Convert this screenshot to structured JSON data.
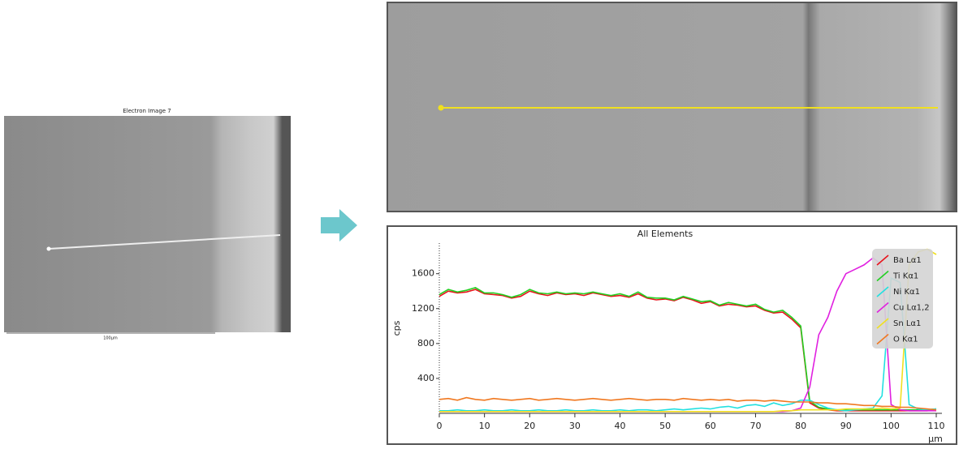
{
  "images": {
    "left_title": "Electron Image 7",
    "scale_bar": "100µm"
  },
  "chart_data": {
    "type": "line",
    "title": "All Elements",
    "y_label": "cps",
    "x_label": "µm",
    "x": [
      0,
      2,
      4,
      6,
      8,
      10,
      12,
      14,
      16,
      18,
      20,
      22,
      24,
      26,
      28,
      30,
      32,
      34,
      36,
      38,
      40,
      42,
      44,
      46,
      48,
      50,
      52,
      54,
      56,
      58,
      60,
      62,
      64,
      66,
      68,
      70,
      72,
      74,
      76,
      78,
      80,
      82,
      84,
      86,
      88,
      90,
      92,
      94,
      96,
      98,
      100,
      102,
      104,
      106,
      108,
      110
    ],
    "xlim": [
      0,
      110
    ],
    "xticks": [
      0,
      10,
      20,
      30,
      40,
      50,
      60,
      70,
      80,
      90,
      100,
      110
    ],
    "ylim": [
      0,
      1950
    ],
    "yticks": [
      400,
      800,
      1200,
      1600
    ],
    "legend": "top-right",
    "series": [
      {
        "name": "Ba Lα1",
        "color": "#e8141c",
        "values": [
          1340,
          1400,
          1380,
          1390,
          1420,
          1370,
          1360,
          1350,
          1320,
          1340,
          1400,
          1370,
          1350,
          1380,
          1360,
          1370,
          1350,
          1380,
          1360,
          1340,
          1350,
          1330,
          1370,
          1320,
          1300,
          1310,
          1290,
          1330,
          1300,
          1260,
          1280,
          1230,
          1250,
          1240,
          1220,
          1230,
          1180,
          1150,
          1160,
          1080,
          980,
          120,
          60,
          40,
          30,
          30,
          30,
          30,
          30,
          30,
          30,
          30,
          30,
          30,
          30,
          40
        ]
      },
      {
        "name": "Ti Kα1",
        "color": "#22d022",
        "values": [
          1360,
          1420,
          1390,
          1410,
          1440,
          1380,
          1380,
          1360,
          1330,
          1360,
          1420,
          1380,
          1370,
          1390,
          1370,
          1380,
          1370,
          1390,
          1370,
          1350,
          1370,
          1340,
          1390,
          1330,
          1320,
          1320,
          1300,
          1340,
          1310,
          1280,
          1290,
          1240,
          1270,
          1250,
          1230,
          1250,
          1190,
          1160,
          1180,
          1100,
          1000,
          140,
          70,
          50,
          40,
          40,
          40,
          40,
          40,
          40,
          40,
          40,
          40,
          40,
          40,
          50
        ]
      },
      {
        "name": "Ni Kα1",
        "color": "#22e0e0",
        "values": [
          30,
          30,
          40,
          30,
          30,
          40,
          30,
          30,
          40,
          30,
          30,
          40,
          30,
          30,
          40,
          30,
          30,
          40,
          30,
          30,
          40,
          30,
          40,
          40,
          30,
          40,
          50,
          40,
          50,
          60,
          50,
          70,
          80,
          60,
          90,
          100,
          80,
          120,
          90,
          110,
          150,
          150,
          100,
          60,
          40,
          30,
          40,
          50,
          60,
          200,
          1550,
          1500,
          100,
          50,
          40,
          50
        ]
      },
      {
        "name": "Cu Lα1,2",
        "color": "#e020e0",
        "values": [
          20,
          20,
          20,
          20,
          20,
          20,
          20,
          20,
          20,
          20,
          20,
          20,
          20,
          20,
          20,
          20,
          20,
          20,
          20,
          20,
          20,
          20,
          20,
          20,
          20,
          20,
          20,
          20,
          20,
          20,
          20,
          20,
          20,
          20,
          20,
          20,
          20,
          20,
          20,
          30,
          60,
          300,
          900,
          1100,
          1400,
          1600,
          1650,
          1700,
          1780,
          1700,
          100,
          40,
          30,
          30,
          30,
          30
        ]
      },
      {
        "name": "Sn Lα1",
        "color": "#f0e020",
        "values": [
          20,
          20,
          20,
          20,
          20,
          20,
          20,
          20,
          20,
          20,
          20,
          20,
          20,
          20,
          20,
          20,
          20,
          20,
          20,
          20,
          20,
          20,
          20,
          20,
          20,
          20,
          20,
          20,
          20,
          20,
          20,
          20,
          20,
          20,
          20,
          20,
          20,
          20,
          30,
          30,
          40,
          40,
          40,
          40,
          40,
          50,
          50,
          50,
          50,
          60,
          50,
          60,
          1700,
          1850,
          1880,
          1820
        ]
      },
      {
        "name": "O Kα1",
        "color": "#f07820",
        "values": [
          160,
          170,
          150,
          180,
          160,
          150,
          170,
          160,
          150,
          160,
          170,
          150,
          160,
          170,
          160,
          150,
          160,
          170,
          160,
          150,
          160,
          170,
          160,
          150,
          160,
          160,
          150,
          170,
          160,
          150,
          160,
          150,
          160,
          140,
          150,
          150,
          140,
          150,
          140,
          130,
          130,
          130,
          120,
          120,
          110,
          110,
          100,
          90,
          90,
          80,
          80,
          70,
          70,
          60,
          50,
          40
        ]
      }
    ]
  }
}
